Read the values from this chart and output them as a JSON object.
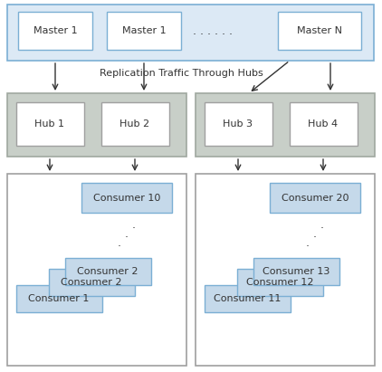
{
  "bg_color": "#ffffff",
  "master_container_color": "#dce9f5",
  "master_container_border": "#7bafd4",
  "master_box_color": "#ffffff",
  "master_box_border": "#7bafd4",
  "hub_group_color": "#c8cfc8",
  "hub_group_border": "#a0a8a0",
  "hub_box_color": "#ffffff",
  "hub_box_border": "#a0a0a0",
  "consumer_group_color": "#ffffff",
  "consumer_group_border": "#a0a0a0",
  "consumer_box_color": "#c5d9ea",
  "consumer_box_border": "#7bafd4",
  "arrow_color": "#333333",
  "text_color": "#333333",
  "masters": [
    "Master 1",
    "Master 1",
    "Master N"
  ],
  "hubs_left": [
    "Hub 1",
    "Hub 2"
  ],
  "hubs_right": [
    "Hub 3",
    "Hub 4"
  ],
  "consumers_left": [
    "Consumer 1",
    "Consumer 2",
    "Consumer 2",
    "Consumer 10"
  ],
  "consumers_right": [
    "Consumer 11",
    "Consumer 12",
    "Consumer 13",
    "Consumer 20"
  ],
  "hub_label": "Replication Traffic Through Hubs"
}
